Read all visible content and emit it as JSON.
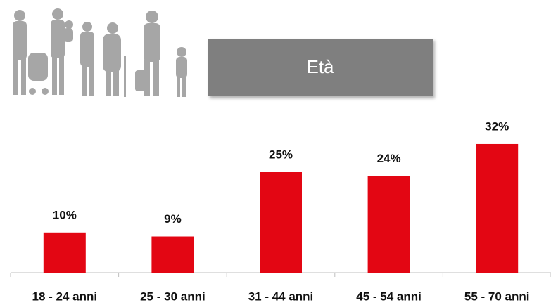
{
  "chart_data": {
    "type": "bar",
    "title": "Età",
    "categories": [
      "18 - 24 anni",
      "25 - 30 anni",
      "31 - 44 anni",
      "45 - 54 anni",
      "55 - 70 anni"
    ],
    "values": [
      10,
      9,
      25,
      24,
      32
    ],
    "value_labels": [
      "10%",
      "9%",
      "25%",
      "24%",
      "32%"
    ],
    "color": "#e30613"
  }
}
